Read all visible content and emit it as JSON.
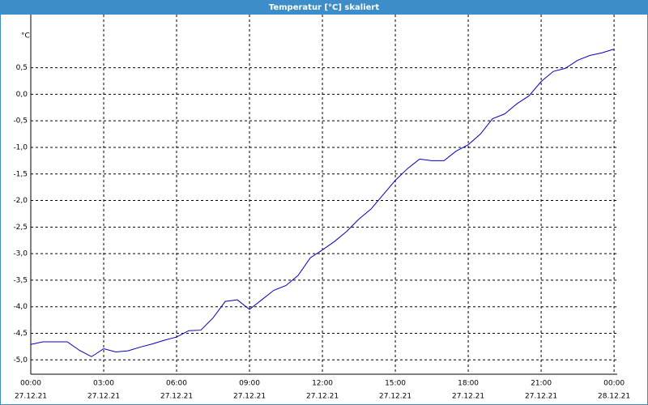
{
  "chart_data": {
    "type": "line",
    "title": "Temperatur [°C] skaliert",
    "y_label": "°C",
    "x": [
      0,
      0.5,
      1,
      1.5,
      2,
      2.5,
      3,
      3.5,
      4,
      4.5,
      5,
      5.5,
      6,
      6.5,
      7,
      7.5,
      8,
      8.5,
      9,
      9.5,
      10,
      10.5,
      11,
      11.5,
      12,
      12.5,
      13,
      13.5,
      14,
      14.5,
      15,
      15.5,
      16,
      16.5,
      17,
      17.5,
      18,
      18.5,
      19,
      19.5,
      20,
      20.5,
      21,
      21.5,
      22,
      22.5,
      23,
      23.5,
      24
    ],
    "series": [
      {
        "color": "#0000c0",
        "values": [
          -4.71,
          -4.66,
          -4.66,
          -4.66,
          -4.82,
          -4.94,
          -4.79,
          -4.85,
          -4.83,
          -4.76,
          -4.7,
          -4.63,
          -4.57,
          -4.45,
          -4.44,
          -4.21,
          -3.9,
          -3.87,
          -4.05,
          -3.87,
          -3.69,
          -3.6,
          -3.41,
          -3.08,
          -2.93,
          -2.77,
          -2.58,
          -2.35,
          -2.16,
          -1.89,
          -1.62,
          -1.4,
          -1.22,
          -1.25,
          -1.25,
          -1.07,
          -0.95,
          -0.75,
          -0.46,
          -0.37,
          -0.18,
          -0.03,
          0.24,
          0.43,
          0.49,
          0.64,
          0.73,
          0.78,
          0.85
        ]
      }
    ],
    "xlim": [
      0,
      24.13
    ],
    "ylim": [
      -5.27,
      1.5
    ],
    "xticks": [
      {
        "value": 0,
        "label": "00:00",
        "date": "27.12.21"
      },
      {
        "value": 3,
        "label": "03:00",
        "date": "27.12.21"
      },
      {
        "value": 6,
        "label": "06:00",
        "date": "27.12.21"
      },
      {
        "value": 9,
        "label": "09:00",
        "date": "27.12.21"
      },
      {
        "value": 12,
        "label": "12:00",
        "date": "27.12.21"
      },
      {
        "value": 15,
        "label": "15:00",
        "date": "27.12.21"
      },
      {
        "value": 18,
        "label": "18:00",
        "date": "27.12.21"
      },
      {
        "value": 21,
        "label": "21:00",
        "date": "27.12.21"
      },
      {
        "value": 24,
        "label": "00:00",
        "date": "28.12.21"
      }
    ],
    "yticks": [
      {
        "value": -5,
        "label": "-5,0"
      },
      {
        "value": -4.5,
        "label": "-4,5"
      },
      {
        "value": -4,
        "label": "-4,0"
      },
      {
        "value": -3.5,
        "label": "-3,5"
      },
      {
        "value": -3,
        "label": "-3,0"
      },
      {
        "value": -2.5,
        "label": "-2,5"
      },
      {
        "value": -2,
        "label": "-2,0"
      },
      {
        "value": -1.5,
        "label": "-1,5"
      },
      {
        "value": -1,
        "label": "-1,0"
      },
      {
        "value": -0.5,
        "label": "-0,5"
      },
      {
        "value": 0,
        "label": "0,0"
      },
      {
        "value": 0.5,
        "label": "0,5"
      }
    ],
    "grid": true
  }
}
